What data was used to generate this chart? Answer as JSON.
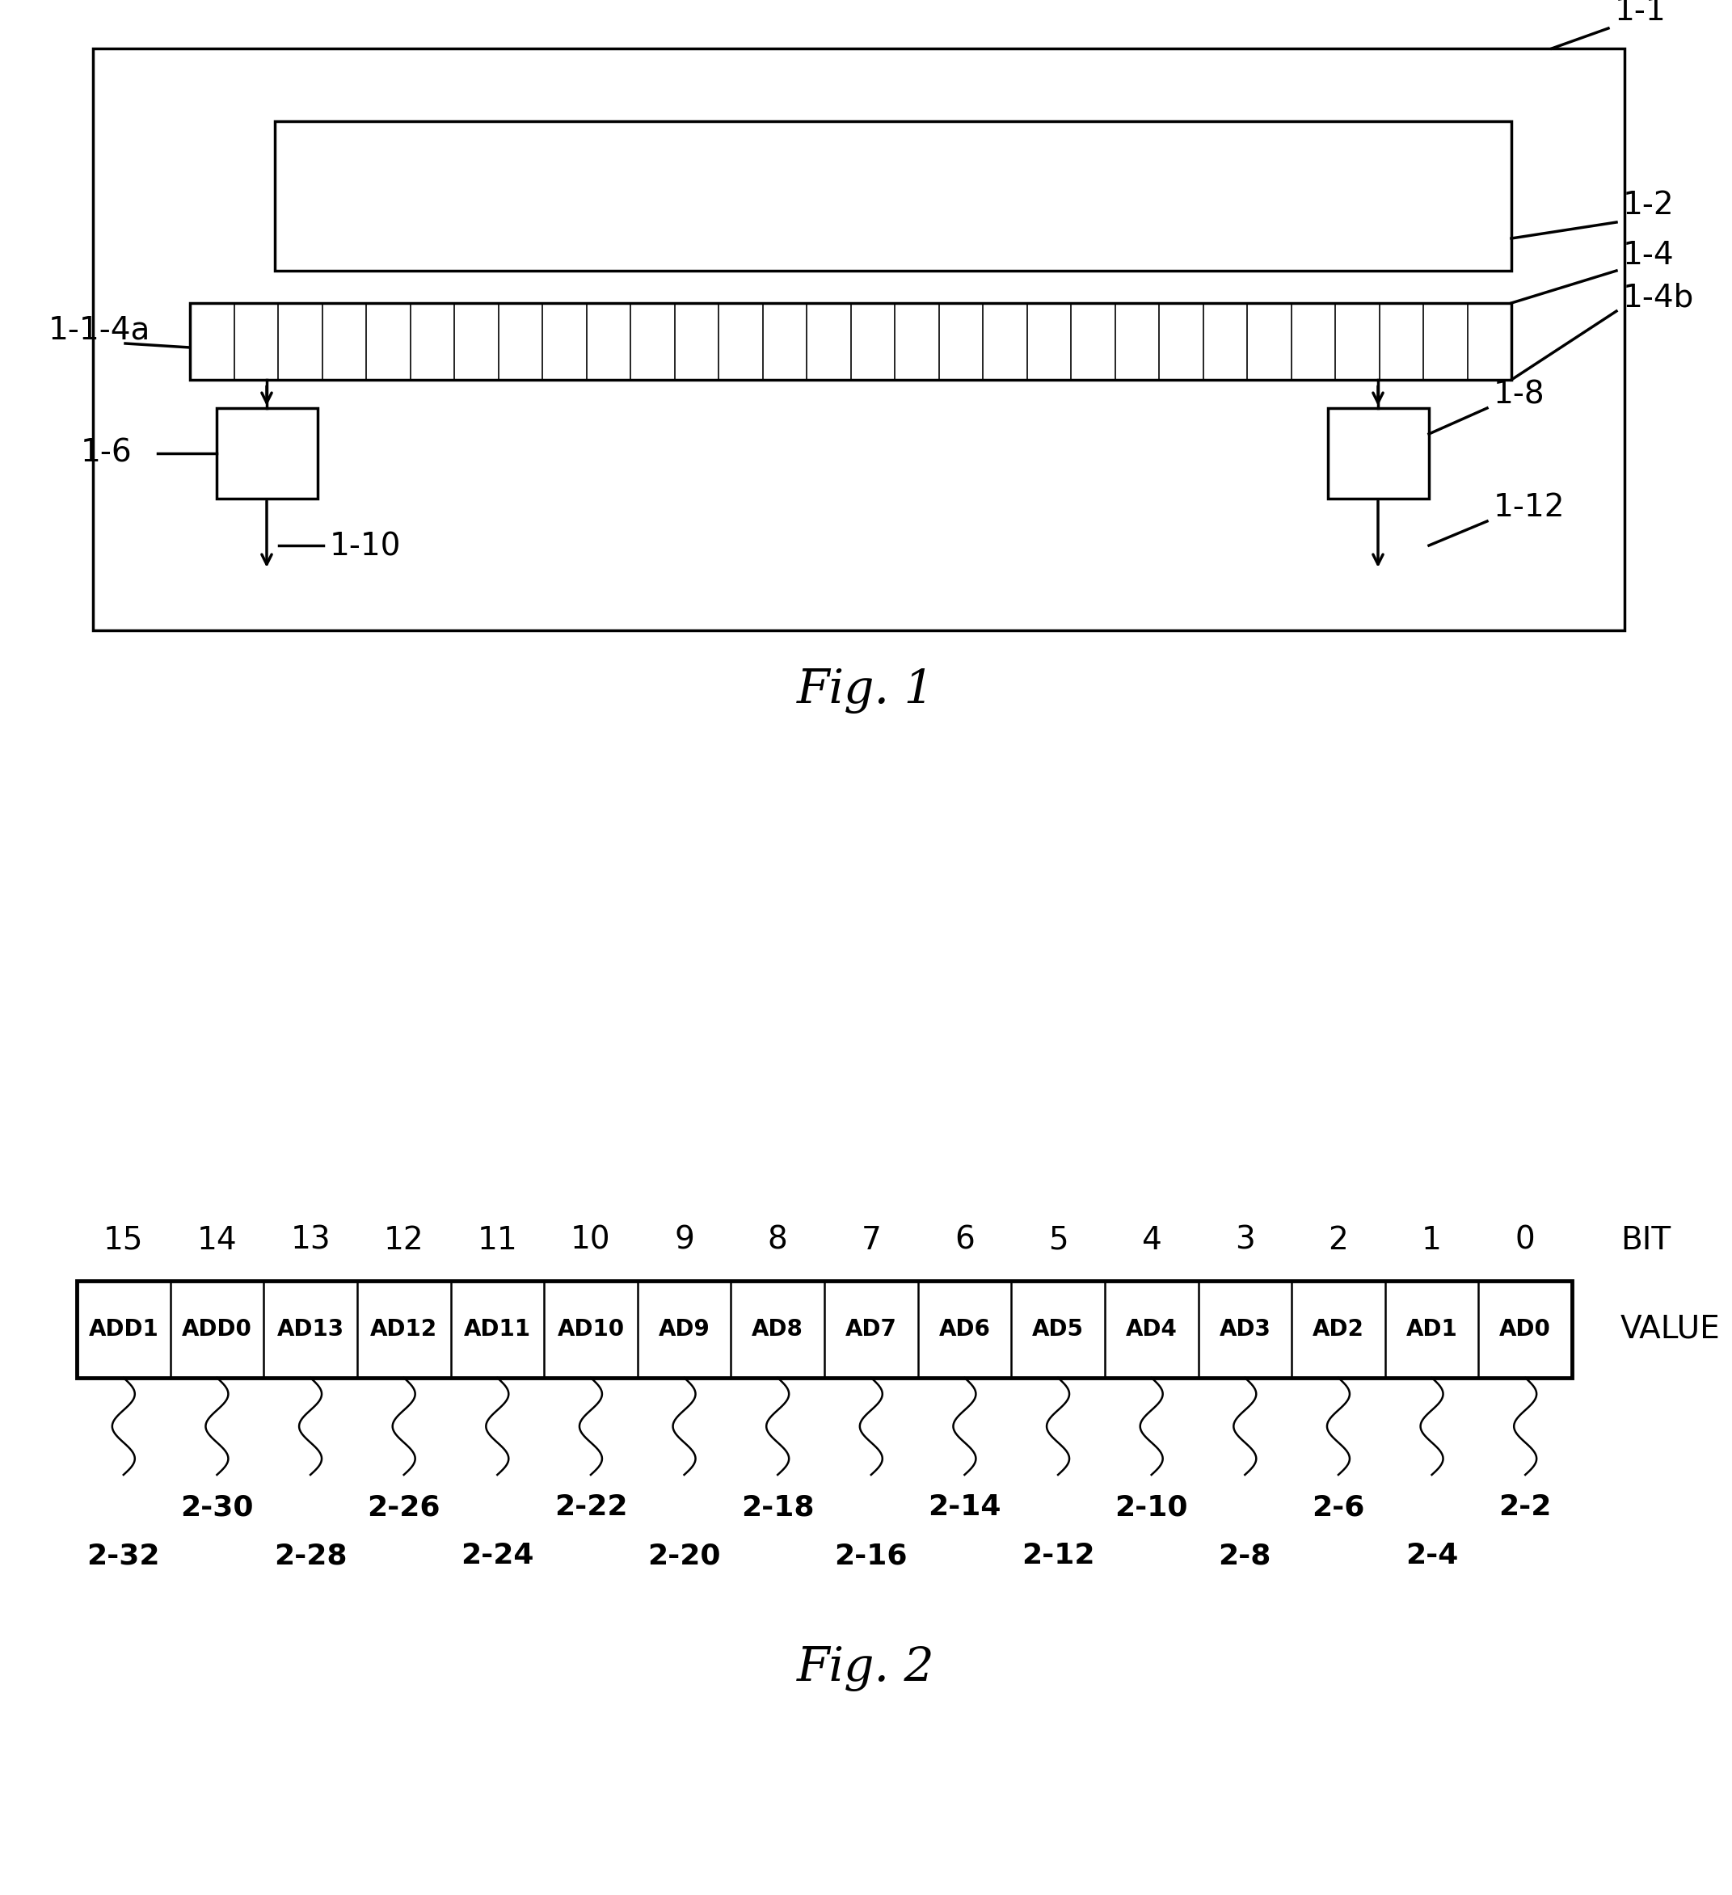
{
  "fig_width": 21.43,
  "fig_height": 23.45,
  "bg_color": "#ffffff",
  "line_color": "#000000",
  "fig1_caption": "Fig. 1",
  "fig2_caption": "Fig. 2",
  "bit_numbers": [
    "15",
    "14",
    "13",
    "12",
    "11",
    "10",
    "9",
    "8",
    "7",
    "6",
    "5",
    "4",
    "3",
    "2",
    "1",
    "0"
  ],
  "bit_values": [
    "ADD1",
    "ADD0",
    "AD13",
    "AD12",
    "AD11",
    "AD10",
    "AD9",
    "AD8",
    "AD7",
    "AD6",
    "AD5",
    "AD4",
    "AD3",
    "AD2",
    "AD1",
    "AD0"
  ],
  "label_bit": "BIT",
  "label_value": "VALUE",
  "upper_refs": [
    [
      1,
      "2-30"
    ],
    [
      3,
      "2-26"
    ],
    [
      5,
      "2-22"
    ],
    [
      7,
      "2-18"
    ],
    [
      9,
      "2-14"
    ],
    [
      11,
      "2-10"
    ],
    [
      13,
      "2-6"
    ],
    [
      15,
      "2-2"
    ]
  ],
  "lower_refs": [
    [
      0,
      "2-32"
    ],
    [
      2,
      "2-28"
    ],
    [
      4,
      "2-24"
    ],
    [
      6,
      "2-20"
    ],
    [
      8,
      "2-16"
    ],
    [
      10,
      "2-12"
    ],
    [
      12,
      "2-8"
    ],
    [
      14,
      "2-4"
    ]
  ]
}
